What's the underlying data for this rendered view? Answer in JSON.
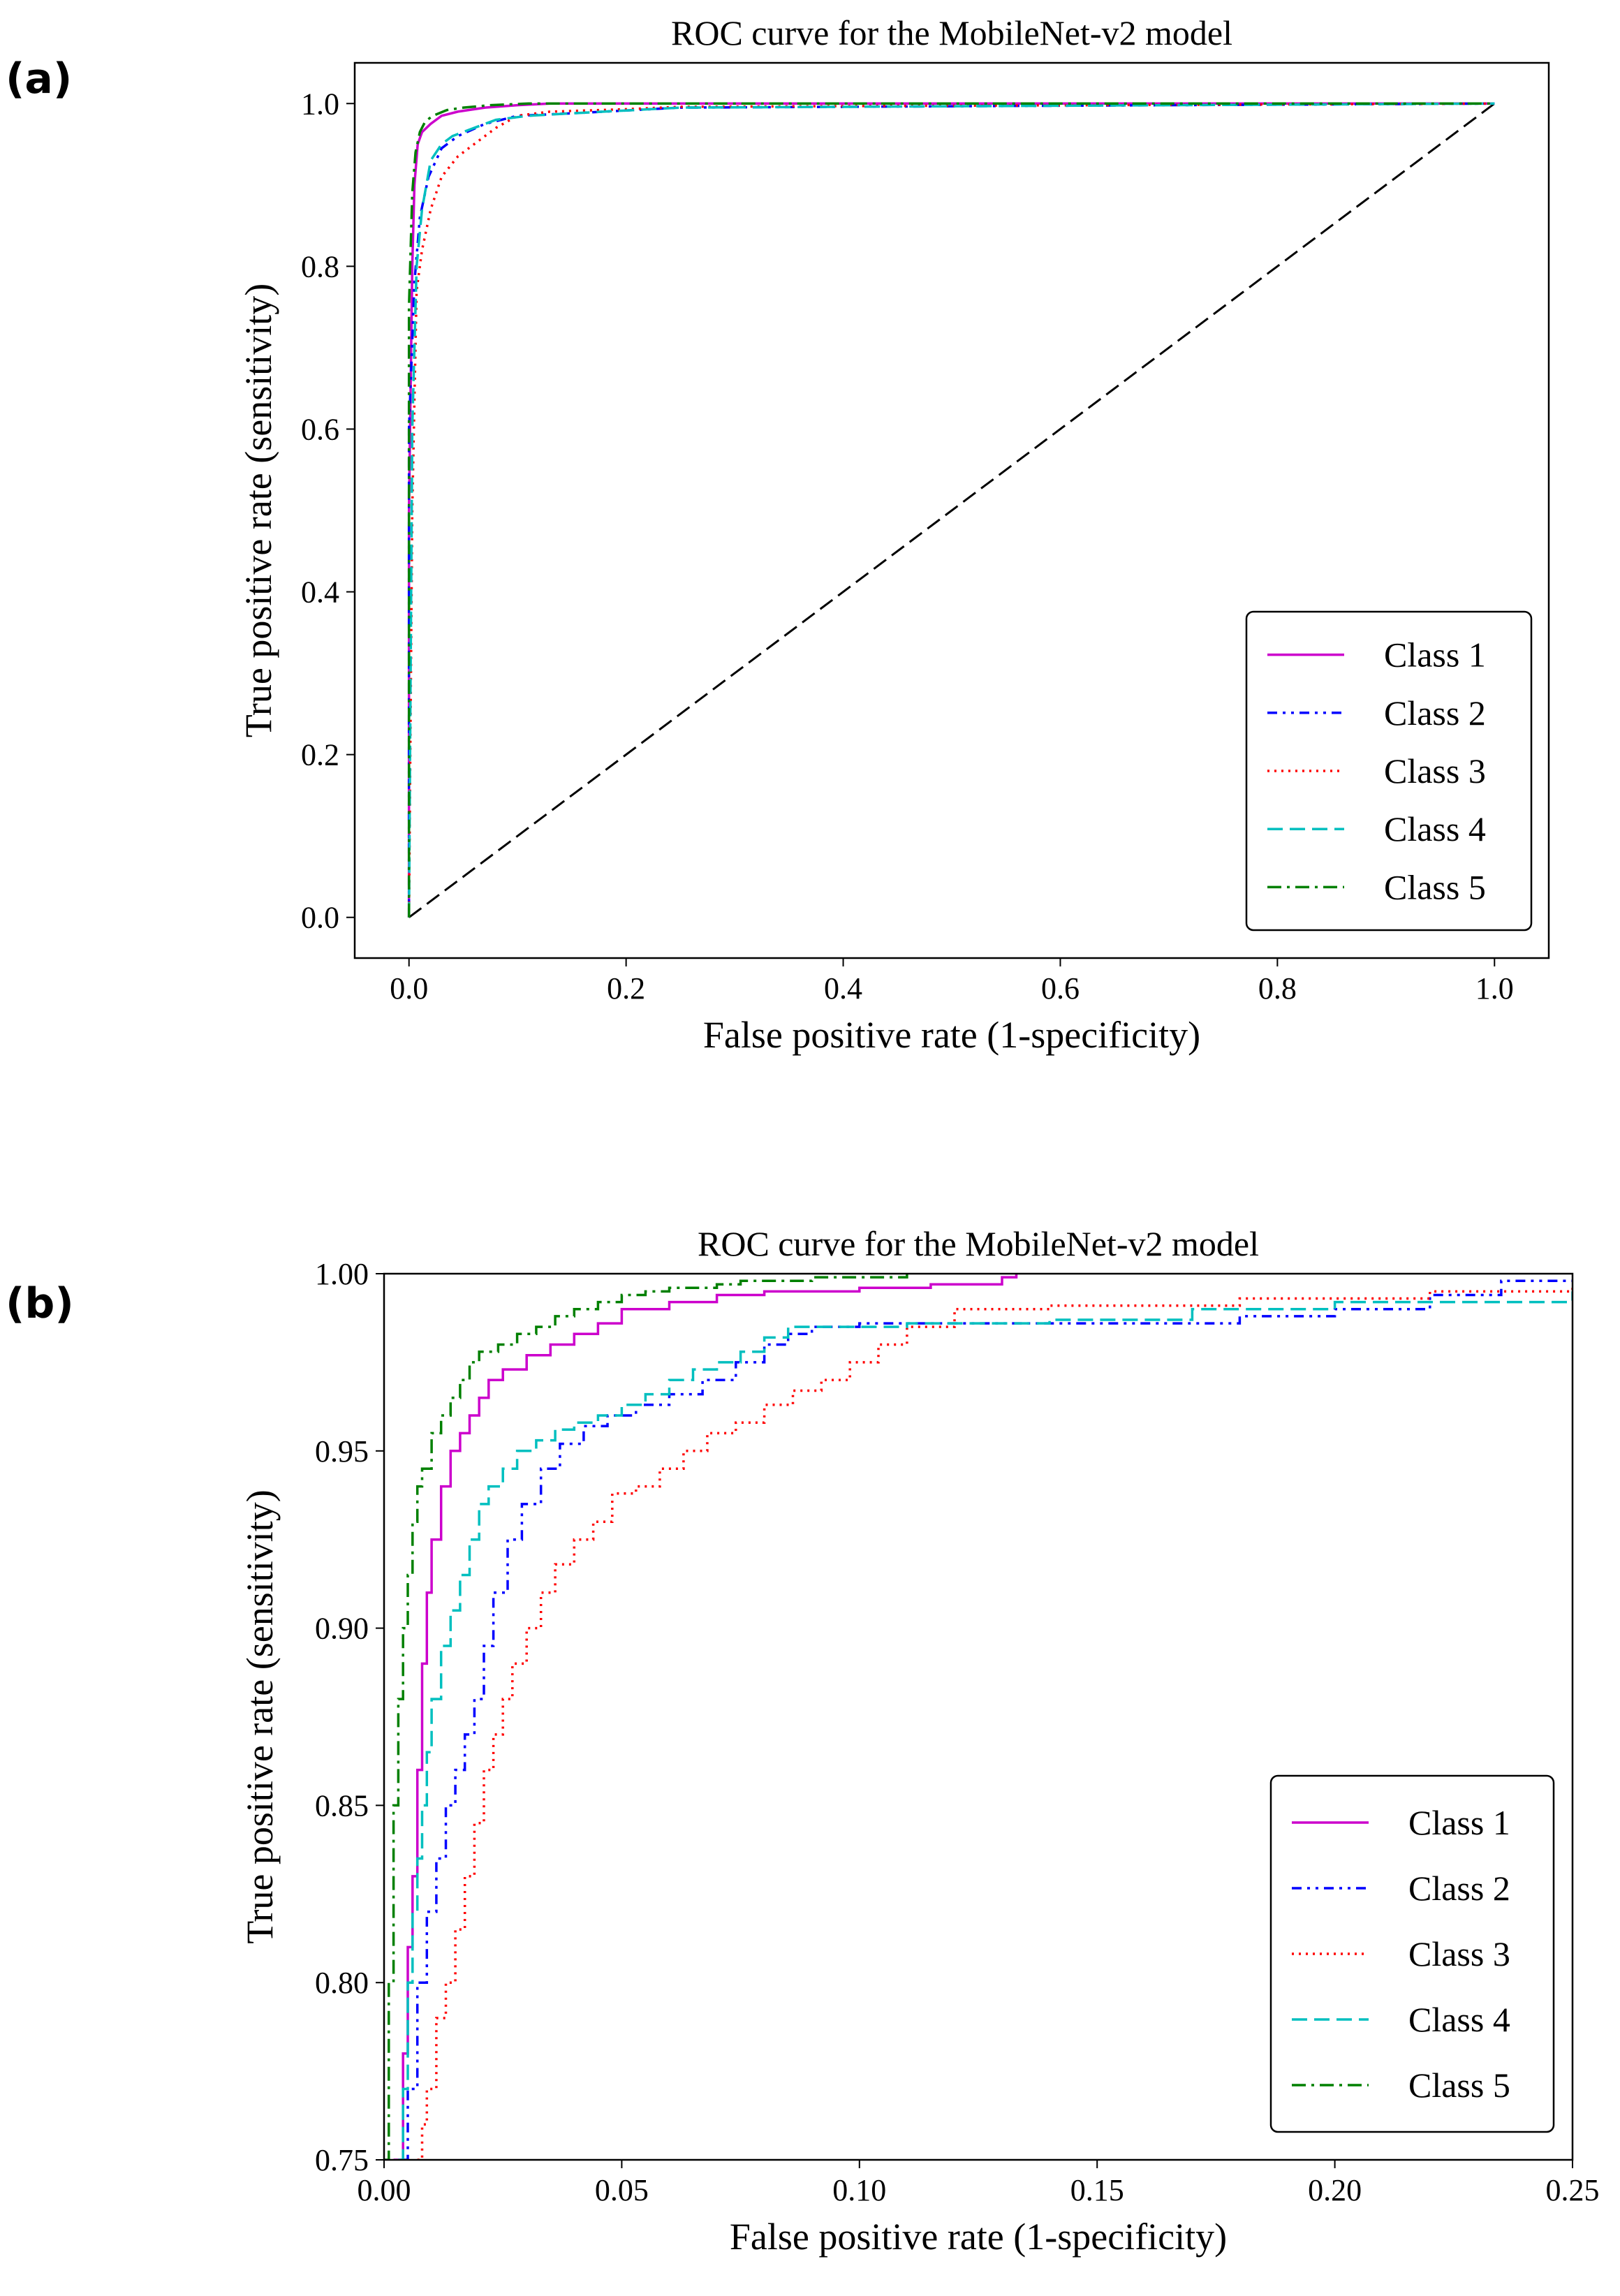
{
  "panel_labels": [
    "(a)",
    "(b)"
  ],
  "chart_data": [
    {
      "type": "line",
      "title": "ROC curve for the MobileNet-v2 model",
      "xlabel": "False positive rate (1-specificity)",
      "ylabel": "True positive rate (sensitivity)",
      "xlim": [
        -0.05,
        1.05
      ],
      "ylim": [
        -0.05,
        1.05
      ],
      "xticks": [
        0.0,
        0.2,
        0.4,
        0.6,
        0.8,
        1.0
      ],
      "xtick_labels": [
        "0.0",
        "0.2",
        "0.4",
        "0.6",
        "0.8",
        "1.0"
      ],
      "yticks": [
        0.0,
        0.2,
        0.4,
        0.6,
        0.8,
        1.0
      ],
      "ytick_labels": [
        "0.0",
        "0.2",
        "0.4",
        "0.6",
        "0.8",
        "1.0"
      ],
      "grid": false,
      "legend_position": "bottom-right",
      "reference_line": {
        "x": [
          0,
          1
        ],
        "y": [
          0,
          1
        ],
        "color": "#000000",
        "style": "dashed"
      },
      "series": [
        {
          "name": "Class 1",
          "color": "#cc00cc",
          "style": "solid",
          "x": [
            0,
            0,
            0.003,
            0.005,
            0.008,
            0.012,
            0.02,
            0.03,
            0.045,
            0.07,
            0.1,
            0.13,
            1.0
          ],
          "y": [
            0,
            0.5,
            0.8,
            0.9,
            0.95,
            0.965,
            0.975,
            0.985,
            0.99,
            0.995,
            0.998,
            1.0,
            1.0
          ]
        },
        {
          "name": "Class 2",
          "color": "#0000ff",
          "style": "dashdotdot",
          "x": [
            0,
            0,
            0.005,
            0.01,
            0.018,
            0.03,
            0.045,
            0.07,
            0.1,
            0.15,
            0.25,
            1.0
          ],
          "y": [
            0,
            0.6,
            0.78,
            0.86,
            0.91,
            0.945,
            0.96,
            0.975,
            0.985,
            0.988,
            0.995,
            1.0
          ]
        },
        {
          "name": "Class 3",
          "color": "#ff0000",
          "style": "dotted",
          "x": [
            0,
            0.003,
            0.007,
            0.012,
            0.02,
            0.03,
            0.045,
            0.06,
            0.08,
            0.1,
            0.13,
            0.2,
            0.25,
            1.0
          ],
          "y": [
            0,
            0.5,
            0.77,
            0.82,
            0.87,
            0.91,
            0.935,
            0.95,
            0.97,
            0.985,
            0.99,
            0.993,
            0.996,
            1.0
          ]
        },
        {
          "name": "Class 4",
          "color": "#00bfbf",
          "style": "dashed",
          "x": [
            0,
            0.003,
            0.007,
            0.012,
            0.02,
            0.03,
            0.04,
            0.06,
            0.08,
            0.11,
            0.15,
            0.25,
            1.0
          ],
          "y": [
            0,
            0.6,
            0.8,
            0.87,
            0.93,
            0.95,
            0.96,
            0.97,
            0.98,
            0.985,
            0.988,
            0.995,
            1.0
          ]
        },
        {
          "name": "Class 5",
          "color": "#008000",
          "style": "dashdot",
          "x": [
            0,
            0,
            0.003,
            0.006,
            0.01,
            0.015,
            0.022,
            0.035,
            0.05,
            0.075,
            0.11,
            1.0
          ],
          "y": [
            0,
            0.75,
            0.89,
            0.94,
            0.965,
            0.978,
            0.985,
            0.992,
            0.995,
            0.998,
            1.0,
            1.0
          ]
        }
      ]
    },
    {
      "type": "line",
      "title": "ROC curve for the MobileNet-v2 model",
      "xlabel": "False positive rate (1-specificity)",
      "ylabel": "True positive rate (sensitivity)",
      "xlim": [
        0.0,
        0.25
      ],
      "ylim": [
        0.75,
        1.0
      ],
      "xticks": [
        0.0,
        0.05,
        0.1,
        0.15,
        0.2,
        0.25
      ],
      "xtick_labels": [
        "0.00",
        "0.05",
        "0.10",
        "0.15",
        "0.20",
        "0.25"
      ],
      "yticks": [
        0.75,
        0.8,
        0.85,
        0.9,
        0.95,
        1.0
      ],
      "ytick_labels": [
        "0.75",
        "0.80",
        "0.85",
        "0.90",
        "0.95",
        "1.00"
      ],
      "grid": false,
      "legend_position": "bottom-right",
      "series": [
        {
          "name": "Class 1",
          "color": "#cc00cc",
          "style": "solid",
          "step": true,
          "x": [
            0.002,
            0.004,
            0.005,
            0.006,
            0.007,
            0.008,
            0.009,
            0.01,
            0.012,
            0.014,
            0.016,
            0.018,
            0.02,
            0.022,
            0.025,
            0.03,
            0.035,
            0.04,
            0.045,
            0.05,
            0.06,
            0.07,
            0.08,
            0.1,
            0.115,
            0.13,
            0.133
          ],
          "y": [
            0.75,
            0.78,
            0.81,
            0.83,
            0.86,
            0.89,
            0.91,
            0.925,
            0.94,
            0.95,
            0.955,
            0.96,
            0.965,
            0.97,
            0.973,
            0.977,
            0.98,
            0.983,
            0.986,
            0.99,
            0.992,
            0.994,
            0.995,
            0.996,
            0.997,
            0.999,
            1.0
          ]
        },
        {
          "name": "Class 2",
          "color": "#0000ff",
          "style": "dashdotdot",
          "step": true,
          "x": [
            0.004,
            0.005,
            0.007,
            0.009,
            0.011,
            0.013,
            0.015,
            0.017,
            0.019,
            0.021,
            0.023,
            0.026,
            0.029,
            0.033,
            0.037,
            0.042,
            0.047,
            0.053,
            0.06,
            0.067,
            0.074,
            0.08,
            0.085,
            0.09,
            0.1,
            0.12,
            0.15,
            0.18,
            0.2,
            0.22,
            0.235,
            0.25
          ],
          "y": [
            0.75,
            0.77,
            0.8,
            0.82,
            0.835,
            0.85,
            0.86,
            0.87,
            0.88,
            0.895,
            0.91,
            0.925,
            0.935,
            0.945,
            0.952,
            0.957,
            0.96,
            0.963,
            0.966,
            0.97,
            0.975,
            0.98,
            0.983,
            0.985,
            0.986,
            0.986,
            0.986,
            0.988,
            0.99,
            0.994,
            0.998,
            0.998
          ]
        },
        {
          "name": "Class 3",
          "color": "#ff0000",
          "style": "dotted",
          "step": true,
          "x": [
            0.007,
            0.008,
            0.009,
            0.011,
            0.013,
            0.015,
            0.017,
            0.019,
            0.021,
            0.023,
            0.025,
            0.027,
            0.03,
            0.033,
            0.036,
            0.04,
            0.044,
            0.048,
            0.053,
            0.058,
            0.063,
            0.068,
            0.074,
            0.08,
            0.086,
            0.092,
            0.098,
            0.104,
            0.11,
            0.12,
            0.14,
            0.16,
            0.18,
            0.2,
            0.22,
            0.25
          ],
          "y": [
            0.75,
            0.76,
            0.77,
            0.79,
            0.8,
            0.815,
            0.83,
            0.845,
            0.86,
            0.87,
            0.88,
            0.89,
            0.9,
            0.91,
            0.918,
            0.925,
            0.93,
            0.938,
            0.94,
            0.945,
            0.95,
            0.955,
            0.958,
            0.963,
            0.967,
            0.97,
            0.975,
            0.98,
            0.985,
            0.99,
            0.991,
            0.991,
            0.993,
            0.993,
            0.995,
            0.996
          ]
        },
        {
          "name": "Class 4",
          "color": "#00bfbf",
          "style": "dashed",
          "step": true,
          "x": [
            0.003,
            0.004,
            0.005,
            0.006,
            0.007,
            0.008,
            0.009,
            0.01,
            0.012,
            0.014,
            0.016,
            0.018,
            0.02,
            0.022,
            0.025,
            0.028,
            0.032,
            0.036,
            0.04,
            0.045,
            0.05,
            0.055,
            0.06,
            0.065,
            0.07,
            0.075,
            0.08,
            0.085,
            0.09,
            0.11,
            0.14,
            0.17,
            0.2,
            0.25
          ],
          "y": [
            0.75,
            0.77,
            0.8,
            0.82,
            0.835,
            0.85,
            0.865,
            0.88,
            0.895,
            0.905,
            0.915,
            0.925,
            0.935,
            0.94,
            0.945,
            0.95,
            0.953,
            0.956,
            0.958,
            0.96,
            0.963,
            0.966,
            0.97,
            0.973,
            0.975,
            0.978,
            0.982,
            0.985,
            0.985,
            0.986,
            0.987,
            0.99,
            0.992,
            0.995
          ]
        },
        {
          "name": "Class 5",
          "color": "#008000",
          "style": "dashdot",
          "step": true,
          "x": [
            0.0,
            0.001,
            0.002,
            0.003,
            0.004,
            0.005,
            0.006,
            0.007,
            0.008,
            0.01,
            0.012,
            0.014,
            0.016,
            0.018,
            0.02,
            0.024,
            0.028,
            0.032,
            0.036,
            0.04,
            0.045,
            0.05,
            0.055,
            0.06,
            0.07,
            0.075,
            0.09,
            0.11
          ],
          "y": [
            0.75,
            0.8,
            0.85,
            0.88,
            0.9,
            0.915,
            0.93,
            0.94,
            0.945,
            0.955,
            0.96,
            0.965,
            0.97,
            0.975,
            0.978,
            0.98,
            0.983,
            0.985,
            0.988,
            0.99,
            0.992,
            0.994,
            0.995,
            0.996,
            0.997,
            0.998,
            0.999,
            1.0
          ]
        }
      ]
    }
  ]
}
